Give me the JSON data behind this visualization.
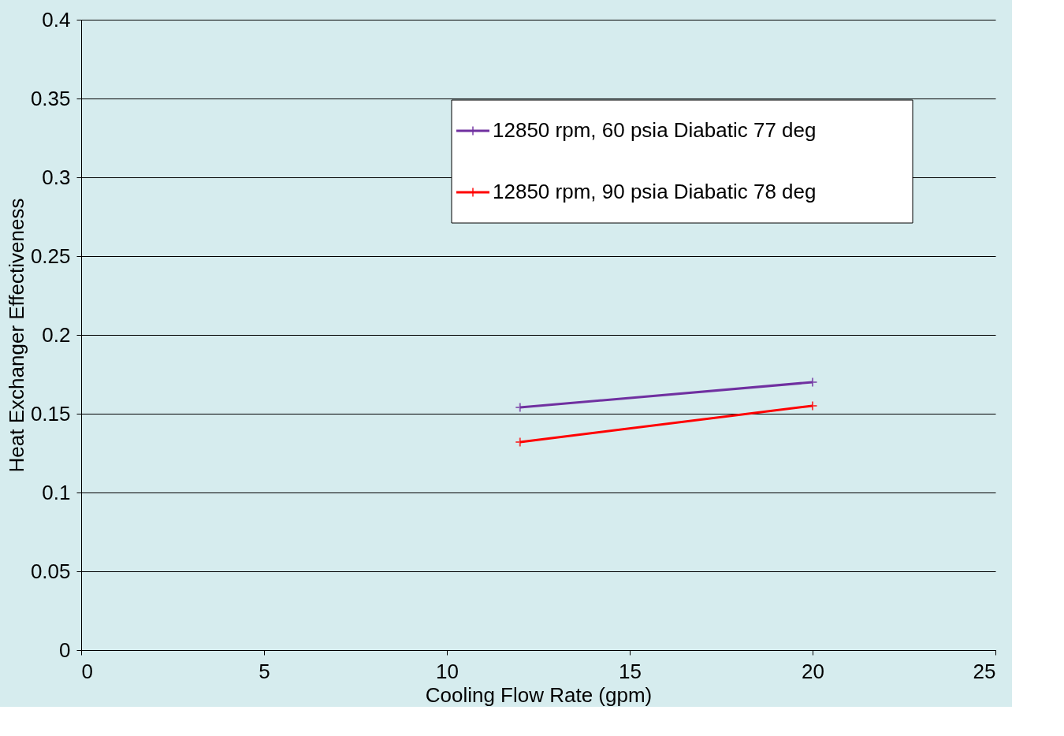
{
  "chart_data": {
    "type": "line",
    "xlabel": "Cooling Flow Rate (gpm)",
    "ylabel": "Heat Exchanger Effectiveness",
    "x": [
      12,
      20
    ],
    "series": [
      {
        "name": "12850 rpm,  60 psia Diabatic 77 deg",
        "color": "#7030a0",
        "marker": "cross",
        "values": [
          0.154,
          0.17
        ]
      },
      {
        "name": "12850 rpm,  90 psia Diabatic 78 deg",
        "color": "#ff0000",
        "marker": "cross",
        "values": [
          0.132,
          0.155
        ]
      }
    ],
    "xlim": [
      0,
      25
    ],
    "xticks": [
      0,
      5,
      10,
      15,
      20,
      25
    ],
    "ylim": [
      0,
      0.4
    ],
    "yticks": [
      0,
      0.05,
      0.1,
      0.15,
      0.2,
      0.25,
      0.3,
      0.35,
      0.4
    ],
    "grid": "y",
    "legend": "top right",
    "line_style": "solid"
  }
}
